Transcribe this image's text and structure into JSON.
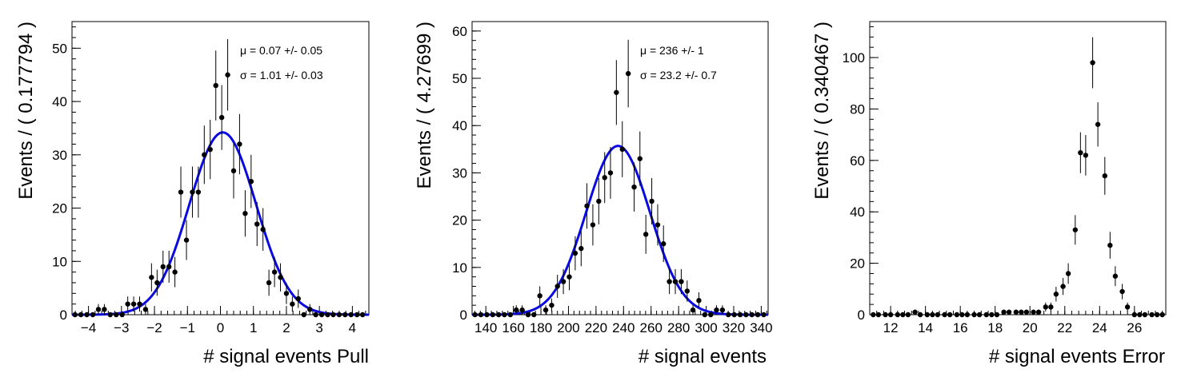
{
  "chart_data": [
    {
      "type": "scatter",
      "xlabel": "# signal events Pull",
      "ylabel": "Events / ( 0.177794 )",
      "xlim": [
        -4.5,
        4.5
      ],
      "ylim": [
        0,
        55
      ],
      "xticks": [
        -4,
        -3,
        -2,
        -1,
        0,
        1,
        2,
        3,
        4
      ],
      "yticks": [
        0,
        10,
        20,
        30,
        40,
        50
      ],
      "x_tick_labels": [
        "−4",
        "−3",
        "−2",
        "−1",
        "0",
        "1",
        "2",
        "3",
        "4"
      ],
      "y_tick_labels": [
        "0",
        "10",
        "20",
        "30",
        "40",
        "50"
      ],
      "stats": {
        "mu": "μ =  0.07 +/- 0.05",
        "sigma": "σ =  1.01 +/- 0.03"
      },
      "fit": {
        "type": "gaussian",
        "mean": 0.07,
        "sigma": 1.01,
        "peak": 34.2
      },
      "x": [
        -4.41,
        -4.23,
        -4.05,
        -3.87,
        -3.7,
        -3.52,
        -3.34,
        -3.16,
        -2.98,
        -2.81,
        -2.63,
        -2.45,
        -2.27,
        -2.09,
        -1.92,
        -1.74,
        -1.56,
        -1.38,
        -1.2,
        -1.03,
        -0.85,
        -0.67,
        -0.49,
        -0.31,
        -0.14,
        0.04,
        0.22,
        0.4,
        0.58,
        0.75,
        0.93,
        1.11,
        1.29,
        1.47,
        1.64,
        1.82,
        2.0,
        2.18,
        2.36,
        2.53,
        2.71,
        2.89,
        3.07,
        3.25,
        3.42,
        3.6,
        3.78,
        3.96,
        4.14,
        4.31
      ],
      "values": [
        0,
        0,
        0,
        0,
        1,
        1,
        0,
        0,
        0,
        2,
        2,
        2,
        1,
        7,
        6,
        9,
        9,
        8,
        23,
        14,
        23,
        23,
        30,
        31,
        43,
        37,
        45,
        27,
        32,
        19,
        25,
        17,
        16,
        6,
        8,
        7,
        4,
        2,
        3,
        0,
        1,
        0,
        0,
        0,
        0,
        0,
        0,
        0,
        0,
        0
      ]
    },
    {
      "type": "scatter",
      "xlabel": "# signal events",
      "ylabel": "Events / ( 4.27699 )",
      "xlim": [
        130,
        345
      ],
      "ylim": [
        0,
        62
      ],
      "xticks": [
        140,
        160,
        180,
        200,
        220,
        240,
        260,
        280,
        300,
        320,
        340
      ],
      "yticks": [
        0,
        10,
        20,
        30,
        40,
        50,
        60
      ],
      "x_tick_labels": [
        "140",
        "160",
        "180",
        "200",
        "220",
        "240",
        "260",
        "280",
        "300",
        "320",
        "340"
      ],
      "y_tick_labels": [
        "0",
        "10",
        "20",
        "30",
        "40",
        "50",
        "60"
      ],
      "stats": {
        "mu": "μ =  236 +/- 1",
        "sigma": "σ =  23.2 +/- 0.7"
      },
      "fit": {
        "type": "gaussian",
        "mean": 236,
        "sigma": 23.2,
        "peak": 35.7
      },
      "x": [
        132.1,
        136.4,
        140.7,
        145.0,
        149.3,
        153.5,
        157.8,
        162.1,
        166.4,
        170.7,
        174.9,
        179.2,
        183.5,
        187.8,
        192.0,
        196.3,
        200.6,
        204.9,
        209.2,
        213.4,
        217.7,
        222.0,
        226.3,
        230.5,
        234.8,
        239.1,
        243.4,
        247.7,
        251.9,
        256.2,
        260.5,
        264.8,
        269.0,
        273.3,
        277.6,
        281.9,
        286.2,
        290.4,
        294.7,
        299.0,
        303.3,
        307.5,
        311.8,
        316.1,
        320.4,
        324.7,
        328.9,
        333.2,
        337.5,
        341.8
      ],
      "values": [
        0,
        0,
        0,
        0,
        0,
        0,
        0,
        1,
        1,
        0,
        0,
        4,
        1,
        2,
        6,
        7,
        8,
        13,
        14,
        23,
        19,
        24,
        29,
        30,
        47,
        35,
        51,
        27,
        33,
        17,
        24,
        19,
        15,
        7,
        7,
        7,
        5,
        1,
        3,
        0,
        0,
        1,
        1,
        0,
        0,
        0,
        0,
        0,
        0,
        0
      ]
    },
    {
      "type": "scatter",
      "xlabel": "# signal events Error",
      "ylabel": "Events / ( 0.340467 )",
      "xlim": [
        10.8,
        27.8
      ],
      "ylim": [
        0,
        114
      ],
      "xticks": [
        12,
        14,
        16,
        18,
        20,
        22,
        24,
        26
      ],
      "yticks": [
        0,
        20,
        40,
        60,
        80,
        100
      ],
      "x_tick_labels": [
        "12",
        "14",
        "16",
        "18",
        "20",
        "22",
        "24",
        "26"
      ],
      "y_tick_labels": [
        "0",
        "20",
        "40",
        "60",
        "80",
        "100"
      ],
      "x": [
        11.0,
        11.3,
        11.7,
        12.0,
        12.4,
        12.7,
        13.0,
        13.4,
        13.7,
        14.1,
        14.4,
        14.7,
        15.1,
        15.4,
        15.8,
        16.1,
        16.4,
        16.8,
        17.1,
        17.5,
        17.8,
        18.1,
        18.5,
        18.8,
        19.2,
        19.5,
        19.8,
        20.2,
        20.5,
        20.9,
        21.2,
        21.5,
        21.9,
        22.2,
        22.6,
        22.9,
        23.2,
        23.6,
        23.9,
        24.3,
        24.6,
        24.9,
        25.3,
        25.6,
        26.0,
        26.3,
        26.6,
        27.0,
        27.3,
        27.6
      ],
      "values": [
        0,
        0,
        0,
        0,
        0,
        0,
        0,
        1,
        0,
        0,
        0,
        0,
        0,
        0,
        0,
        0,
        0,
        0,
        0,
        0,
        0,
        0,
        1,
        1,
        1,
        1,
        1,
        1,
        1,
        3,
        3,
        8,
        11,
        16,
        33,
        63,
        62,
        98,
        74,
        54,
        27,
        15,
        9,
        3,
        0,
        0,
        0,
        0,
        0,
        0
      ]
    }
  ]
}
